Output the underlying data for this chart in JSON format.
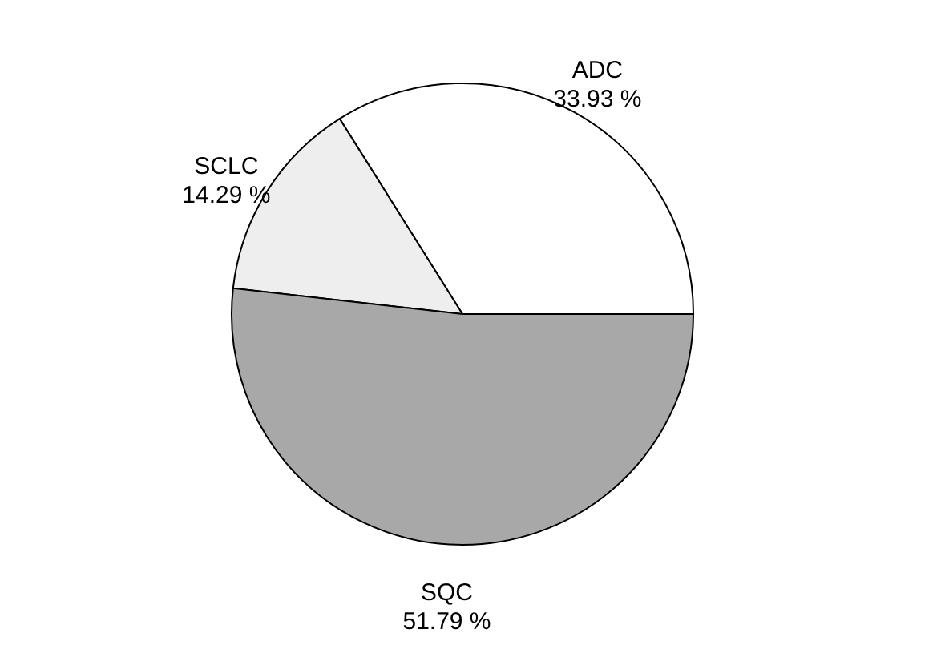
{
  "chart_data": {
    "type": "pie",
    "categories": [
      "ADC",
      "SCLC",
      "SQC"
    ],
    "values": [
      33.93,
      14.29,
      51.79
    ],
    "colors": [
      "#ffffff",
      "#eeeeee",
      "#a8a8a8"
    ],
    "value_labels": [
      "33.93 %",
      "14.29 %",
      "51.79 %"
    ],
    "legend": false
  }
}
